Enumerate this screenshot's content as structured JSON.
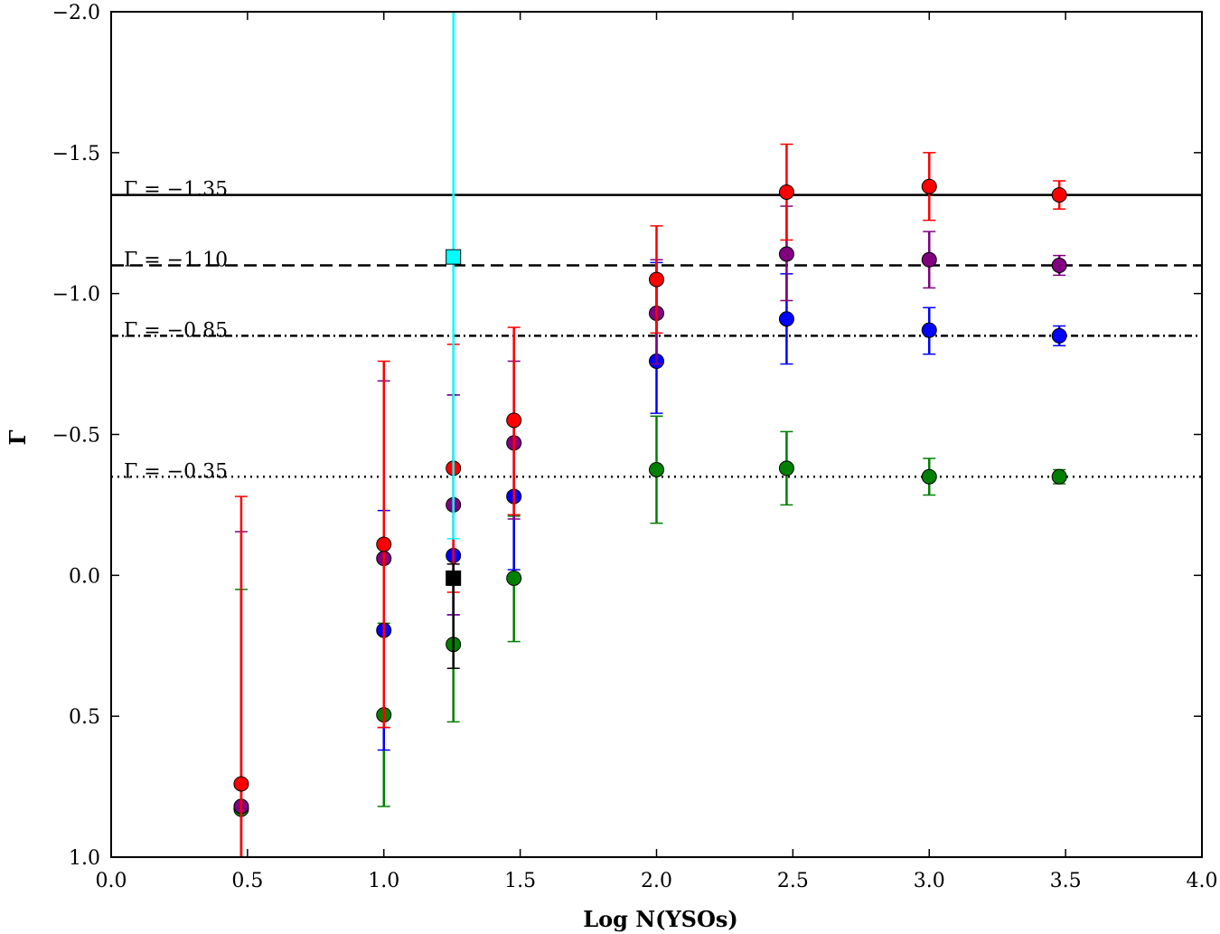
{
  "chart_data": {
    "type": "scatter",
    "title": "",
    "xlabel": "Log N(YSOs)",
    "ylabel": "Γ",
    "xlim": [
      0.0,
      4.0
    ],
    "ylim": [
      1.0,
      -2.0
    ],
    "xticks": [
      "0.0",
      "0.5",
      "1.0",
      "1.5",
      "2.0",
      "2.5",
      "3.0",
      "3.5",
      "4.0"
    ],
    "yticks": [
      "1.0",
      "0.5",
      "0.0",
      "−0.5",
      "−1.0",
      "−1.5",
      "−2.0"
    ],
    "xtick_values": [
      0.0,
      0.5,
      1.0,
      1.5,
      2.0,
      2.5,
      3.0,
      3.5,
      4.0
    ],
    "ytick_values": [
      1.0,
      0.5,
      0.0,
      -0.5,
      -1.0,
      -1.5,
      -2.0
    ],
    "reference_lines": [
      {
        "label": "Γ = −1.35",
        "y": -1.35,
        "style": "solid"
      },
      {
        "label": "Γ = −1.10",
        "y": -1.1,
        "style": "dashed"
      },
      {
        "label": "Γ = −0.85",
        "y": -0.85,
        "style": "dashdot"
      },
      {
        "label": "Γ = −0.35",
        "y": -0.35,
        "style": "dotted"
      }
    ],
    "series": [
      {
        "name": "green",
        "color": "#008000",
        "marker": "circle",
        "points": [
          {
            "x": 0.477,
            "y": 0.83,
            "lo": 0.05,
            "hi": 1.0
          },
          {
            "x": 1.0,
            "y": 0.495,
            "lo": 0.17,
            "hi": 0.82
          },
          {
            "x": 1.255,
            "y": 0.245,
            "lo": 0.0,
            "hi": 0.52
          },
          {
            "x": 1.477,
            "y": 0.01,
            "lo": -0.21,
            "hi": 0.235
          },
          {
            "x": 2.0,
            "y": -0.375,
            "lo": -0.565,
            "hi": -0.185
          },
          {
            "x": 2.477,
            "y": -0.38,
            "lo": -0.51,
            "hi": -0.25
          },
          {
            "x": 3.0,
            "y": -0.35,
            "lo": -0.415,
            "hi": -0.285
          },
          {
            "x": 3.477,
            "y": -0.35,
            "lo": -0.375,
            "hi": -0.325
          }
        ]
      },
      {
        "name": "blue",
        "color": "#0000ff",
        "marker": "circle",
        "points": [
          {
            "x": 1.0,
            "y": 0.195,
            "lo": -0.23,
            "hi": 0.62
          },
          {
            "x": 1.255,
            "y": -0.07,
            "lo": -0.64,
            "hi": 0.14
          },
          {
            "x": 1.477,
            "y": -0.28,
            "lo": -0.545,
            "hi": -0.02
          },
          {
            "x": 2.0,
            "y": -0.76,
            "lo": -1.11,
            "hi": -0.575
          },
          {
            "x": 2.477,
            "y": -0.91,
            "lo": -1.07,
            "hi": -0.75
          },
          {
            "x": 3.0,
            "y": -0.87,
            "lo": -0.95,
            "hi": -0.785
          },
          {
            "x": 3.477,
            "y": -0.85,
            "lo": -0.885,
            "hi": -0.815
          }
        ]
      },
      {
        "name": "purple",
        "color": "#800080",
        "marker": "circle",
        "points": [
          {
            "x": 0.477,
            "y": 0.82,
            "lo": -0.155,
            "hi": 1.0
          },
          {
            "x": 1.0,
            "y": -0.06,
            "lo": -0.69,
            "hi": 0.54
          },
          {
            "x": 1.255,
            "y": -0.25,
            "lo": -0.64,
            "hi": 0.14
          },
          {
            "x": 1.477,
            "y": -0.47,
            "lo": -0.76,
            "hi": -0.2
          },
          {
            "x": 2.0,
            "y": -0.93,
            "lo": -1.12,
            "hi": -0.75
          },
          {
            "x": 2.477,
            "y": -1.14,
            "lo": -1.31,
            "hi": -0.975
          },
          {
            "x": 3.0,
            "y": -1.12,
            "lo": -1.22,
            "hi": -1.02
          },
          {
            "x": 3.477,
            "y": -1.1,
            "lo": -1.135,
            "hi": -1.065
          }
        ]
      },
      {
        "name": "red",
        "color": "#ff0000",
        "marker": "circle",
        "points": [
          {
            "x": 0.477,
            "y": 0.74,
            "lo": -0.28,
            "hi": 1.0
          },
          {
            "x": 1.0,
            "y": -0.11,
            "lo": -0.76,
            "hi": 0.54
          },
          {
            "x": 1.255,
            "y": -0.38,
            "lo": -0.82,
            "hi": 0.06
          },
          {
            "x": 1.477,
            "y": -0.55,
            "lo": -0.88,
            "hi": -0.215
          },
          {
            "x": 2.0,
            "y": -1.05,
            "lo": -1.24,
            "hi": -0.86
          },
          {
            "x": 2.477,
            "y": -1.36,
            "lo": -1.53,
            "hi": -1.19
          },
          {
            "x": 3.0,
            "y": -1.38,
            "lo": -1.5,
            "hi": -1.26
          },
          {
            "x": 3.477,
            "y": -1.35,
            "lo": -1.4,
            "hi": -1.3
          }
        ]
      },
      {
        "name": "black-square",
        "color": "#000000",
        "marker": "square",
        "points": [
          {
            "x": 1.255,
            "y": 0.01,
            "lo": -0.04,
            "hi": 0.33
          }
        ]
      },
      {
        "name": "cyan-square",
        "color": "#00ffff",
        "marker": "square",
        "points": [
          {
            "x": 1.255,
            "y": -1.13,
            "lo": -2.0,
            "hi": -0.13
          }
        ]
      }
    ]
  }
}
